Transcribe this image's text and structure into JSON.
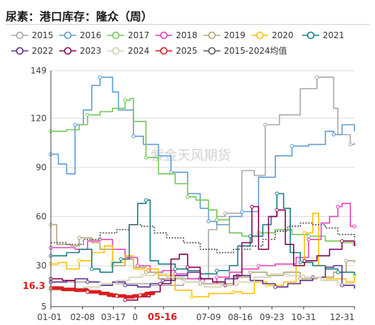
{
  "title": "尿素：港口库存：隆众（周）",
  "watermark": "紫金天风期货",
  "highlight_value": "16.3",
  "highlight_date": "05-16",
  "chart_data": {
    "type": "line",
    "y_ticks": [
      5,
      30,
      60,
      90,
      120,
      149
    ],
    "ylim": [
      5,
      149
    ],
    "x_ticks": [
      "01-01",
      "02-08",
      "03-17",
      "0",
      "05-16",
      "07-09",
      "08-16",
      "09-23",
      "10-31",
      "12-31"
    ],
    "x_tick_days": [
      1,
      39,
      76,
      102,
      136,
      190,
      228,
      266,
      304,
      365
    ],
    "grid": "horizontal",
    "legend_position": "top",
    "series": [
      {
        "name": "2015",
        "color": "#a6a6a6",
        "dashed": false,
        "points": [
          [
            1,
            20
          ],
          [
            60,
            19
          ],
          [
            120,
            18
          ],
          [
            160,
            22
          ],
          [
            190,
            52
          ],
          [
            200,
            60
          ],
          [
            210,
            62
          ],
          [
            230,
            88
          ],
          [
            245,
            85
          ],
          [
            258,
            116
          ],
          [
            275,
            122
          ],
          [
            300,
            138
          ],
          [
            320,
            145
          ],
          [
            340,
            126
          ],
          [
            345,
            110
          ],
          [
            360,
            104
          ],
          [
            365,
            105
          ]
        ]
      },
      {
        "name": "2016",
        "color": "#5b9bd5",
        "dashed": false,
        "points": [
          [
            1,
            98
          ],
          [
            10,
            92
          ],
          [
            20,
            86
          ],
          [
            30,
            116
          ],
          [
            40,
            125
          ],
          [
            50,
            140
          ],
          [
            60,
            145
          ],
          [
            75,
            136
          ],
          [
            82,
            125
          ],
          [
            100,
            109
          ],
          [
            112,
            104
          ],
          [
            130,
            97
          ],
          [
            145,
            87
          ],
          [
            165,
            74
          ],
          [
            180,
            65
          ],
          [
            190,
            57
          ],
          [
            200,
            55
          ],
          [
            215,
            60
          ],
          [
            230,
            63
          ],
          [
            250,
            84
          ],
          [
            270,
            97
          ],
          [
            290,
            103
          ],
          [
            310,
            104
          ],
          [
            330,
            112
          ],
          [
            340,
            110
          ],
          [
            350,
            116
          ],
          [
            365,
            112
          ]
        ]
      },
      {
        "name": "2017",
        "color": "#70c850",
        "dashed": false,
        "points": [
          [
            1,
            112
          ],
          [
            20,
            113
          ],
          [
            35,
            116
          ],
          [
            45,
            122
          ],
          [
            60,
            124
          ],
          [
            75,
            126
          ],
          [
            90,
            131
          ],
          [
            96,
            132
          ],
          [
            100,
            118
          ],
          [
            115,
            96
          ],
          [
            130,
            86
          ],
          [
            150,
            80
          ],
          [
            165,
            72
          ],
          [
            175,
            70
          ],
          [
            190,
            64
          ],
          [
            200,
            58
          ],
          [
            215,
            50
          ],
          [
            230,
            48
          ],
          [
            250,
            50
          ],
          [
            270,
            52
          ],
          [
            290,
            49
          ],
          [
            310,
            48
          ],
          [
            330,
            45
          ],
          [
            350,
            44
          ],
          [
            365,
            43
          ]
        ]
      },
      {
        "name": "2018",
        "color": "#e83fb9",
        "dashed": false,
        "points": [
          [
            1,
            41
          ],
          [
            30,
            40
          ],
          [
            45,
            45
          ],
          [
            60,
            46
          ],
          [
            75,
            40
          ],
          [
            90,
            35
          ],
          [
            105,
            30
          ],
          [
            120,
            26
          ],
          [
            135,
            27
          ],
          [
            150,
            25
          ],
          [
            165,
            22
          ],
          [
            185,
            19
          ],
          [
            200,
            23
          ],
          [
            215,
            26
          ],
          [
            230,
            28
          ],
          [
            250,
            30
          ],
          [
            270,
            31
          ],
          [
            295,
            35
          ],
          [
            310,
            46
          ],
          [
            325,
            56
          ],
          [
            335,
            60
          ],
          [
            345,
            66
          ],
          [
            350,
            68
          ],
          [
            360,
            54
          ],
          [
            365,
            54
          ]
        ]
      },
      {
        "name": "2019",
        "color": "#b3a374",
        "dashed": false,
        "points": [
          [
            1,
            55
          ],
          [
            8,
            43
          ],
          [
            25,
            42
          ],
          [
            35,
            47
          ],
          [
            50,
            44
          ],
          [
            60,
            40
          ],
          [
            75,
            30
          ],
          [
            90,
            34
          ],
          [
            100,
            29
          ],
          [
            115,
            26
          ],
          [
            130,
            22
          ],
          [
            160,
            20
          ],
          [
            180,
            19
          ],
          [
            200,
            19
          ],
          [
            220,
            23
          ],
          [
            240,
            26
          ],
          [
            260,
            24
          ],
          [
            280,
            26
          ],
          [
            300,
            22
          ],
          [
            320,
            23
          ],
          [
            340,
            26
          ],
          [
            355,
            33
          ],
          [
            365,
            32
          ]
        ]
      },
      {
        "name": "2020",
        "color": "#ffc000",
        "dashed": false,
        "points": [
          [
            1,
            31
          ],
          [
            10,
            32
          ],
          [
            20,
            28
          ],
          [
            35,
            33
          ],
          [
            50,
            38
          ],
          [
            65,
            42
          ],
          [
            75,
            32
          ],
          [
            90,
            36
          ],
          [
            100,
            28
          ],
          [
            115,
            28
          ],
          [
            130,
            24
          ],
          [
            150,
            15
          ],
          [
            170,
            11
          ],
          [
            190,
            13
          ],
          [
            205,
            13
          ],
          [
            220,
            14
          ],
          [
            230,
            13
          ],
          [
            245,
            20
          ],
          [
            260,
            18
          ],
          [
            280,
            20
          ],
          [
            295,
            30
          ],
          [
            305,
            50
          ],
          [
            315,
            62
          ],
          [
            322,
            30
          ],
          [
            330,
            22
          ],
          [
            345,
            22
          ],
          [
            355,
            20
          ],
          [
            365,
            24
          ]
        ]
      },
      {
        "name": "2021",
        "color": "#147b85",
        "dashed": false,
        "points": [
          [
            1,
            36
          ],
          [
            20,
            38
          ],
          [
            35,
            40
          ],
          [
            50,
            28
          ],
          [
            60,
            26
          ],
          [
            75,
            32
          ],
          [
            85,
            34
          ],
          [
            95,
            55
          ],
          [
            105,
            68
          ],
          [
            115,
            70
          ],
          [
            120,
            33
          ],
          [
            130,
            31
          ],
          [
            150,
            28
          ],
          [
            165,
            27
          ],
          [
            180,
            25
          ],
          [
            200,
            27
          ],
          [
            215,
            30
          ],
          [
            225,
            42
          ],
          [
            240,
            48
          ],
          [
            255,
            55
          ],
          [
            265,
            60
          ],
          [
            272,
            74
          ],
          [
            280,
            65
          ],
          [
            288,
            38
          ],
          [
            300,
            32
          ],
          [
            315,
            30
          ],
          [
            330,
            28
          ],
          [
            345,
            26
          ],
          [
            365,
            24
          ]
        ]
      },
      {
        "name": "2022",
        "color": "#5c2d91",
        "dashed": false,
        "points": [
          [
            1,
            20
          ],
          [
            20,
            21
          ],
          [
            30,
            22
          ],
          [
            45,
            20
          ],
          [
            60,
            18
          ],
          [
            75,
            20
          ],
          [
            90,
            18
          ],
          [
            105,
            17
          ],
          [
            120,
            19
          ],
          [
            135,
            21
          ],
          [
            150,
            24
          ],
          [
            165,
            26
          ],
          [
            180,
            22
          ],
          [
            195,
            20
          ],
          [
            210,
            22
          ],
          [
            225,
            24
          ],
          [
            240,
            21
          ],
          [
            255,
            19
          ],
          [
            270,
            17
          ],
          [
            285,
            19
          ],
          [
            300,
            21
          ],
          [
            315,
            23
          ],
          [
            330,
            29
          ],
          [
            340,
            30
          ],
          [
            350,
            18
          ],
          [
            365,
            16
          ]
        ]
      },
      {
        "name": "2023",
        "color": "#8b0051",
        "dashed": false,
        "points": [
          [
            1,
            22
          ],
          [
            15,
            21
          ],
          [
            30,
            16
          ],
          [
            45,
            14
          ],
          [
            60,
            13
          ],
          [
            75,
            11
          ],
          [
            90,
            9
          ],
          [
            105,
            11
          ],
          [
            120,
            14
          ],
          [
            132,
            19
          ],
          [
            145,
            34
          ],
          [
            155,
            37
          ],
          [
            165,
            29
          ],
          [
            180,
            22
          ],
          [
            195,
            20
          ],
          [
            210,
            18
          ],
          [
            220,
            24
          ],
          [
            230,
            44
          ],
          [
            242,
            66
          ],
          [
            250,
            40
          ],
          [
            262,
            60
          ],
          [
            272,
            64
          ],
          [
            282,
            43
          ],
          [
            292,
            30
          ],
          [
            305,
            33
          ],
          [
            320,
            36
          ],
          [
            335,
            40
          ],
          [
            350,
            45
          ],
          [
            365,
            42
          ]
        ]
      },
      {
        "name": "2024",
        "color": "#d2d0b4",
        "dashed": false,
        "points": [
          [
            1,
            15
          ],
          [
            20,
            16
          ],
          [
            40,
            17
          ],
          [
            60,
            19
          ],
          [
            80,
            21
          ],
          [
            95,
            23
          ],
          [
            110,
            24
          ],
          [
            125,
            25
          ],
          [
            140,
            23
          ],
          [
            160,
            20
          ],
          [
            185,
            17
          ],
          [
            205,
            18
          ],
          [
            225,
            20
          ],
          [
            245,
            23
          ],
          [
            265,
            25
          ],
          [
            285,
            24
          ],
          [
            305,
            23
          ],
          [
            325,
            21
          ],
          [
            345,
            19
          ],
          [
            365,
            18
          ]
        ]
      },
      {
        "name": "2025",
        "color": "#d91e1e",
        "dashed": false,
        "width": 5,
        "points": [
          [
            1,
            16.3
          ],
          [
            15,
            15.5
          ],
          [
            30,
            15
          ],
          [
            45,
            14
          ],
          [
            60,
            13
          ],
          [
            70,
            12
          ],
          [
            80,
            11.5
          ],
          [
            90,
            11
          ],
          [
            100,
            11.5
          ],
          [
            108,
            12
          ],
          [
            115,
            13
          ],
          [
            124,
            14
          ]
        ]
      },
      {
        "name": "2015-2024均值",
        "color": "#595959",
        "dashed": true,
        "points": [
          [
            1,
            44
          ],
          [
            20,
            43
          ],
          [
            40,
            46
          ],
          [
            60,
            50
          ],
          [
            80,
            52
          ],
          [
            95,
            55
          ],
          [
            110,
            54
          ],
          [
            125,
            50
          ],
          [
            140,
            47
          ],
          [
            160,
            44
          ],
          [
            180,
            40
          ],
          [
            200,
            38
          ],
          [
            220,
            40
          ],
          [
            240,
            42
          ],
          [
            255,
            46
          ],
          [
            270,
            51
          ],
          [
            285,
            54
          ],
          [
            300,
            56
          ],
          [
            315,
            55
          ],
          [
            330,
            53
          ],
          [
            345,
            49
          ],
          [
            365,
            46
          ]
        ]
      }
    ]
  }
}
